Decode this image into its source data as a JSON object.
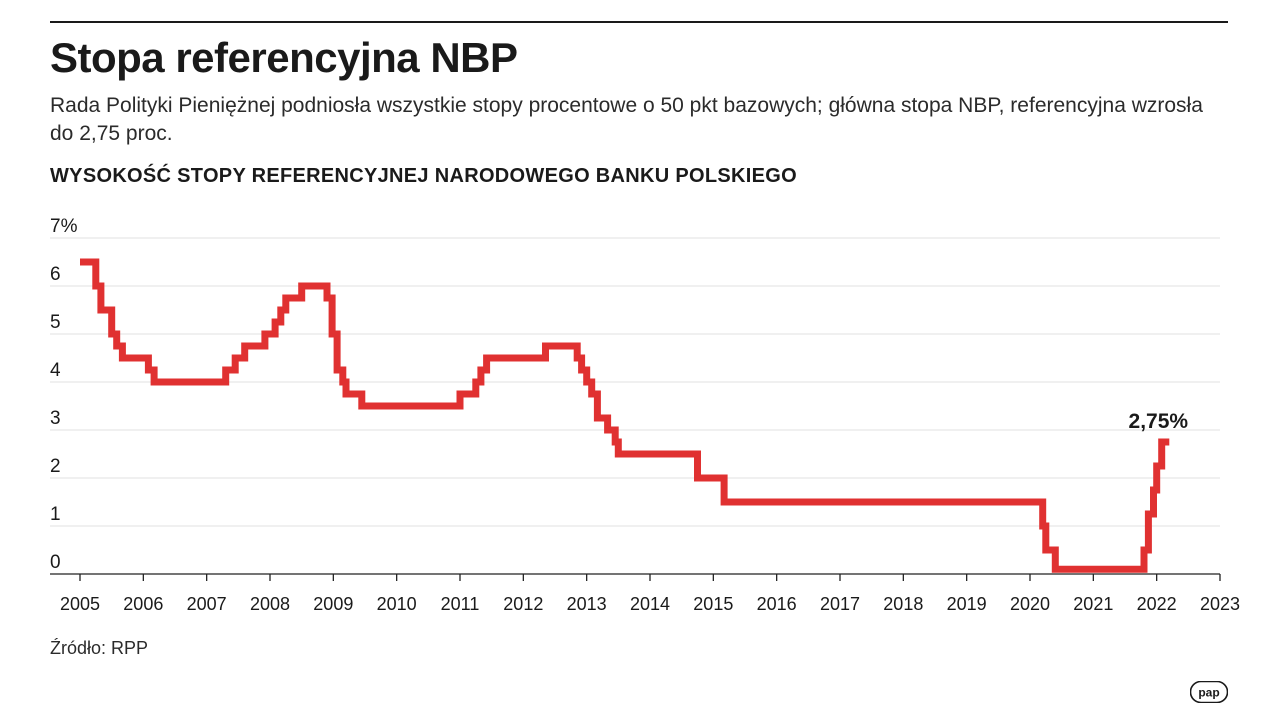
{
  "header": {
    "title": "Stopa referencyjna NBP",
    "subtitle": "Rada Polityki Pieniężnej podniosła wszystkie stopy procentowe o 50 pkt bazowych; główna stopa NBP, referencyjna wzrosła do 2,75 proc.",
    "chart_heading": "WYSOKOŚĆ STOPY REFERENCYJNEJ NARODOWEGO BANKU POLSKIEGO"
  },
  "footer": {
    "source": "Źródło: RPP",
    "logo_text": "pap"
  },
  "colors": {
    "line": "#e03131",
    "grid": "#e2e2e2",
    "axis": "#222222",
    "text": "#1a1a1a"
  },
  "chart_data": {
    "type": "line",
    "step": true,
    "title": "WYSOKOŚĆ STOPY REFERENCYJNEJ NARODOWEGO BANKU POLSKIEGO",
    "xlabel": "",
    "ylabel": "",
    "xlim": [
      2005,
      2023
    ],
    "ylim": [
      0,
      7
    ],
    "x_ticks": [
      "2005",
      "2006",
      "2007",
      "2008",
      "2009",
      "2010",
      "2011",
      "2012",
      "2013",
      "2014",
      "2015",
      "2016",
      "2017",
      "2018",
      "2019",
      "2020",
      "2021",
      "2022",
      "2023"
    ],
    "y_ticks": [
      "0",
      "1",
      "2",
      "3",
      "4",
      "5",
      "6",
      "7%"
    ],
    "grid": true,
    "annotation": {
      "text": "2,75%",
      "x": 2022.2,
      "y": 2.75
    },
    "series": [
      {
        "name": "",
        "points": [
          {
            "x": 2005.0,
            "y": 6.5
          },
          {
            "x": 2005.25,
            "y": 6.0
          },
          {
            "x": 2005.33,
            "y": 5.5
          },
          {
            "x": 2005.5,
            "y": 5.0
          },
          {
            "x": 2005.58,
            "y": 4.75
          },
          {
            "x": 2005.67,
            "y": 4.5
          },
          {
            "x": 2006.08,
            "y": 4.25
          },
          {
            "x": 2006.17,
            "y": 4.0
          },
          {
            "x": 2007.3,
            "y": 4.25
          },
          {
            "x": 2007.45,
            "y": 4.5
          },
          {
            "x": 2007.6,
            "y": 4.75
          },
          {
            "x": 2007.92,
            "y": 5.0
          },
          {
            "x": 2008.08,
            "y": 5.25
          },
          {
            "x": 2008.17,
            "y": 5.5
          },
          {
            "x": 2008.25,
            "y": 5.75
          },
          {
            "x": 2008.5,
            "y": 6.0
          },
          {
            "x": 2008.9,
            "y": 5.75
          },
          {
            "x": 2008.98,
            "y": 5.0
          },
          {
            "x": 2009.06,
            "y": 4.25
          },
          {
            "x": 2009.15,
            "y": 4.0
          },
          {
            "x": 2009.2,
            "y": 3.75
          },
          {
            "x": 2009.45,
            "y": 3.5
          },
          {
            "x": 2011.0,
            "y": 3.75
          },
          {
            "x": 2011.25,
            "y": 4.0
          },
          {
            "x": 2011.33,
            "y": 4.25
          },
          {
            "x": 2011.42,
            "y": 4.5
          },
          {
            "x": 2012.35,
            "y": 4.75
          },
          {
            "x": 2012.85,
            "y": 4.5
          },
          {
            "x": 2012.92,
            "y": 4.25
          },
          {
            "x": 2013.0,
            "y": 4.0
          },
          {
            "x": 2013.08,
            "y": 3.75
          },
          {
            "x": 2013.17,
            "y": 3.25
          },
          {
            "x": 2013.33,
            "y": 3.0
          },
          {
            "x": 2013.45,
            "y": 2.75
          },
          {
            "x": 2013.5,
            "y": 2.5
          },
          {
            "x": 2014.75,
            "y": 2.0
          },
          {
            "x": 2015.17,
            "y": 1.5
          },
          {
            "x": 2020.2,
            "y": 1.0
          },
          {
            "x": 2020.25,
            "y": 0.5
          },
          {
            "x": 2020.4,
            "y": 0.1
          },
          {
            "x": 2021.8,
            "y": 0.5
          },
          {
            "x": 2021.87,
            "y": 1.25
          },
          {
            "x": 2021.95,
            "y": 1.75
          },
          {
            "x": 2022.0,
            "y": 2.25
          },
          {
            "x": 2022.08,
            "y": 2.75
          },
          {
            "x": 2022.2,
            "y": 2.75
          }
        ]
      }
    ]
  }
}
